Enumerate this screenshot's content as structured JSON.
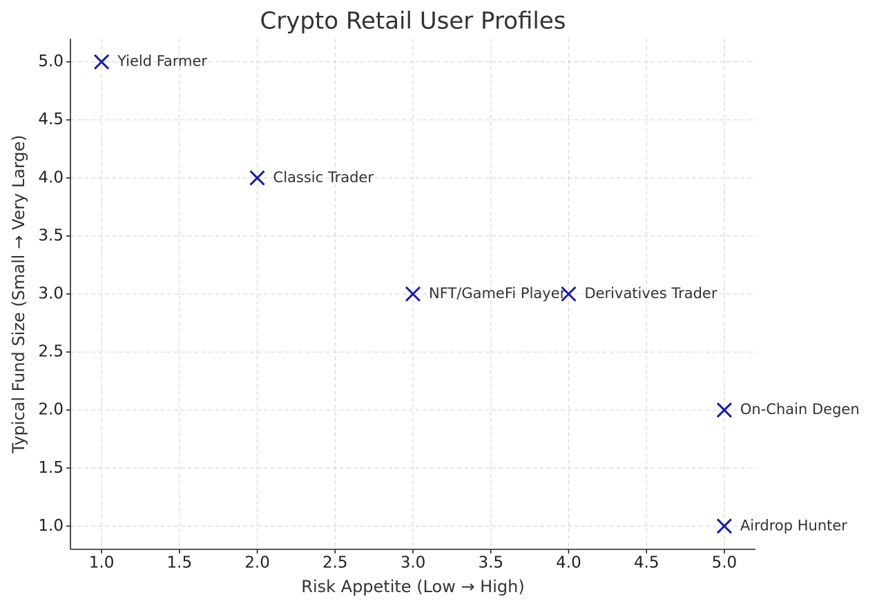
{
  "chart_data": {
    "type": "scatter",
    "title": "Crypto Retail User Profiles",
    "x_label": "Risk Appetite (Low → High)",
    "y_label": "Typical Fund Size (Small → Very Large)",
    "x": [
      1,
      2,
      3,
      4,
      5,
      5
    ],
    "y": [
      5,
      4,
      3,
      3,
      2,
      1
    ],
    "labels": [
      "Yield Farmer",
      "Classic Trader",
      "NFT/GameFi Player",
      "Derivatives Trader",
      "On-Chain Degen",
      "Airdrop Hunter"
    ],
    "color": "#1a1aa6",
    "marker": "x",
    "xlim": [
      0.8,
      5.2
    ],
    "xticks": [
      {
        "value": 1,
        "label": "1.0"
      },
      1.5,
      {
        "value": 2,
        "label": "2.0"
      },
      2.5,
      {
        "value": 3,
        "label": "3.0"
      },
      3.5,
      {
        "value": 4,
        "label": "4.0"
      },
      4.5,
      {
        "value": 5,
        "label": "5.0"
      }
    ],
    "ylim": [
      0.8,
      5.2
    ],
    "yticks": [
      {
        "value": 1,
        "label": "1.0"
      },
      1.5,
      {
        "value": 2,
        "label": "2.0"
      },
      2.5,
      {
        "value": 3,
        "label": "3.0"
      },
      3.5,
      {
        "value": 4,
        "label": "4.0"
      },
      4.5,
      {
        "value": 5,
        "label": "5.0"
      }
    ],
    "grid": true
  }
}
